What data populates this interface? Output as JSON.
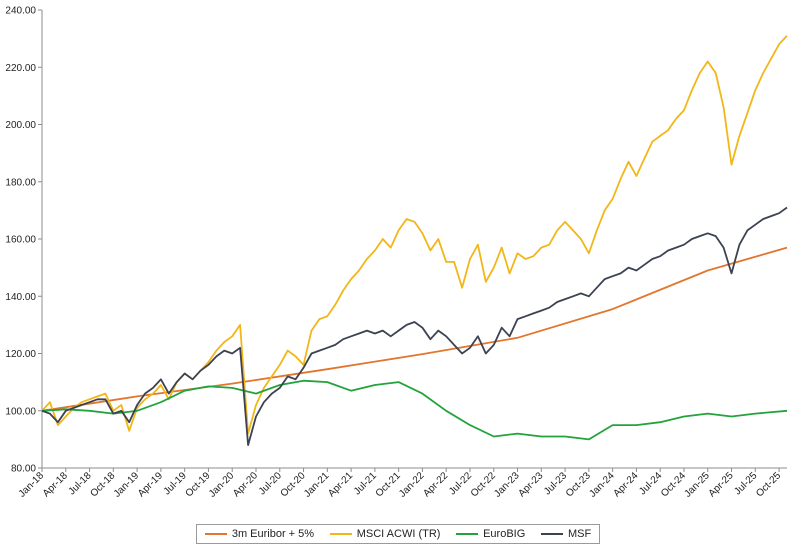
{
  "chart_data": {
    "type": "line",
    "title": "",
    "xlabel": "",
    "ylabel": "",
    "ylim": [
      80,
      240
    ],
    "yticks": [
      "80.00",
      "100.00",
      "120.00",
      "140.00",
      "160.00",
      "180.00",
      "200.00",
      "220.00",
      "240.00"
    ],
    "xticks": [
      "Jan-18",
      "Apr-18",
      "Jul-18",
      "Oct-18",
      "Jan-19",
      "Apr-19",
      "Jul-19",
      "Oct-19",
      "Jan-20",
      "Apr-20",
      "Jul-20",
      "Oct-20",
      "Jan-21",
      "Apr-21",
      "Jul-21",
      "Oct-21",
      "Jan-22",
      "Apr-22",
      "Jul-22",
      "Oct-22",
      "Jan-23",
      "Apr-23",
      "Jul-23",
      "Oct-23",
      "Jan-24",
      "Apr-24",
      "Jul-24",
      "Oct-24",
      "Jan-25",
      "Apr-25",
      "Jul-25",
      "Oct-25"
    ],
    "grid": false,
    "legend": "bottom",
    "x_unit": "month",
    "series": [
      {
        "name": "3m Euribor + 5%",
        "color": "#e2762d",
        "points": [
          [
            "Jan-18",
            100
          ],
          [
            "Jan-19",
            105
          ],
          [
            "Jan-20",
            109.5
          ],
          [
            "Jan-21",
            114.5
          ],
          [
            "Jan-22",
            119.8
          ],
          [
            "Jan-23",
            125.5
          ],
          [
            "Jan-24",
            135.5
          ],
          [
            "Jan-25",
            149
          ],
          [
            "Nov-25",
            157
          ]
        ]
      },
      {
        "name": "MSCI ACWI (TR)",
        "color": "#f2b619",
        "points": [
          [
            "Jan-18",
            100
          ],
          [
            "Feb-18",
            103
          ],
          [
            "Mar-18",
            95
          ],
          [
            "Apr-18",
            98
          ],
          [
            "May-18",
            101
          ],
          [
            "Jun-18",
            103
          ],
          [
            "Jul-18",
            104
          ],
          [
            "Aug-18",
            105
          ],
          [
            "Sep-18",
            106
          ],
          [
            "Oct-18",
            100
          ],
          [
            "Nov-18",
            102
          ],
          [
            "Dec-18",
            93
          ],
          [
            "Jan-19",
            101
          ],
          [
            "Feb-19",
            104
          ],
          [
            "Mar-19",
            106
          ],
          [
            "Apr-19",
            109
          ],
          [
            "May-19",
            104
          ],
          [
            "Jun-19",
            110
          ],
          [
            "Jul-19",
            113
          ],
          [
            "Aug-19",
            111
          ],
          [
            "Sep-19",
            114
          ],
          [
            "Oct-19",
            117
          ],
          [
            "Nov-19",
            121
          ],
          [
            "Dec-19",
            124
          ],
          [
            "Jan-20",
            126
          ],
          [
            "Feb-20",
            130
          ],
          [
            "Mar-20",
            92
          ],
          [
            "Apr-20",
            102
          ],
          [
            "May-20",
            108
          ],
          [
            "Jun-20",
            112
          ],
          [
            "Jul-20",
            116
          ],
          [
            "Aug-20",
            121
          ],
          [
            "Sep-20",
            119
          ],
          [
            "Oct-20",
            116
          ],
          [
            "Nov-20",
            128
          ],
          [
            "Dec-20",
            132
          ],
          [
            "Jan-21",
            133
          ],
          [
            "Feb-21",
            137
          ],
          [
            "Mar-21",
            142
          ],
          [
            "Apr-21",
            146
          ],
          [
            "May-21",
            149
          ],
          [
            "Jun-21",
            153
          ],
          [
            "Jul-21",
            156
          ],
          [
            "Aug-21",
            160
          ],
          [
            "Sep-21",
            157
          ],
          [
            "Oct-21",
            163
          ],
          [
            "Nov-21",
            167
          ],
          [
            "Dec-21",
            166
          ],
          [
            "Jan-22",
            162
          ],
          [
            "Feb-22",
            156
          ],
          [
            "Mar-22",
            160
          ],
          [
            "Apr-22",
            152
          ],
          [
            "May-22",
            152
          ],
          [
            "Jun-22",
            143
          ],
          [
            "Jul-22",
            153
          ],
          [
            "Aug-22",
            158
          ],
          [
            "Sep-22",
            145
          ],
          [
            "Oct-22",
            150
          ],
          [
            "Nov-22",
            157
          ],
          [
            "Dec-22",
            148
          ],
          [
            "Jan-23",
            155
          ],
          [
            "Feb-23",
            153
          ],
          [
            "Mar-23",
            154
          ],
          [
            "Apr-23",
            157
          ],
          [
            "May-23",
            158
          ],
          [
            "Jun-23",
            163
          ],
          [
            "Jul-23",
            166
          ],
          [
            "Aug-23",
            163
          ],
          [
            "Sep-23",
            160
          ],
          [
            "Oct-23",
            155
          ],
          [
            "Nov-23",
            163
          ],
          [
            "Dec-23",
            170
          ],
          [
            "Jan-24",
            174
          ],
          [
            "Feb-24",
            181
          ],
          [
            "Mar-24",
            187
          ],
          [
            "Apr-24",
            182
          ],
          [
            "May-24",
            188
          ],
          [
            "Jun-24",
            194
          ],
          [
            "Jul-24",
            196
          ],
          [
            "Aug-24",
            198
          ],
          [
            "Sep-24",
            202
          ],
          [
            "Oct-24",
            205
          ],
          [
            "Nov-24",
            212
          ],
          [
            "Dec-24",
            218
          ],
          [
            "Jan-25",
            222
          ],
          [
            "Feb-25",
            218
          ],
          [
            "Mar-25",
            206
          ],
          [
            "Apr-25",
            186
          ],
          [
            "May-25",
            196
          ],
          [
            "Jun-25",
            204
          ],
          [
            "Jul-25",
            212
          ],
          [
            "Aug-25",
            218
          ],
          [
            "Sep-25",
            223
          ],
          [
            "Oct-25",
            228
          ],
          [
            "Nov-25",
            231
          ]
        ]
      },
      {
        "name": "EuroBIG",
        "color": "#22a33c",
        "points": [
          [
            "Jan-18",
            100
          ],
          [
            "Apr-18",
            100.5
          ],
          [
            "Jul-18",
            100
          ],
          [
            "Oct-18",
            99
          ],
          [
            "Jan-19",
            100
          ],
          [
            "Apr-19",
            103
          ],
          [
            "Jul-19",
            107
          ],
          [
            "Oct-19",
            108.5
          ],
          [
            "Jan-20",
            108
          ],
          [
            "Apr-20",
            106
          ],
          [
            "Jul-20",
            109
          ],
          [
            "Oct-20",
            110.5
          ],
          [
            "Jan-21",
            110
          ],
          [
            "Apr-21",
            107
          ],
          [
            "Jul-21",
            109
          ],
          [
            "Oct-21",
            110
          ],
          [
            "Jan-22",
            106
          ],
          [
            "Apr-22",
            100
          ],
          [
            "Jul-22",
            95
          ],
          [
            "Oct-22",
            91
          ],
          [
            "Jan-23",
            92
          ],
          [
            "Apr-23",
            91
          ],
          [
            "Jul-23",
            91
          ],
          [
            "Oct-23",
            90
          ],
          [
            "Jan-24",
            95
          ],
          [
            "Apr-24",
            95
          ],
          [
            "Jul-24",
            96
          ],
          [
            "Oct-24",
            98
          ],
          [
            "Jan-25",
            99
          ],
          [
            "Apr-25",
            98
          ],
          [
            "Jul-25",
            99
          ],
          [
            "Nov-25",
            100
          ]
        ]
      },
      {
        "name": "MSF",
        "color": "#3c4252",
        "points": [
          [
            "Jan-18",
            100
          ],
          [
            "Feb-18",
            99
          ],
          [
            "Mar-18",
            96
          ],
          [
            "Apr-18",
            100
          ],
          [
            "May-18",
            101
          ],
          [
            "Jun-18",
            102
          ],
          [
            "Jul-18",
            103
          ],
          [
            "Aug-18",
            104
          ],
          [
            "Sep-18",
            104
          ],
          [
            "Oct-18",
            99
          ],
          [
            "Nov-18",
            100
          ],
          [
            "Dec-18",
            96
          ],
          [
            "Jan-19",
            102
          ],
          [
            "Feb-19",
            106
          ],
          [
            "Mar-19",
            108
          ],
          [
            "Apr-19",
            111
          ],
          [
            "May-19",
            106
          ],
          [
            "Jun-19",
            110
          ],
          [
            "Jul-19",
            113
          ],
          [
            "Aug-19",
            111
          ],
          [
            "Sep-19",
            114
          ],
          [
            "Oct-19",
            116
          ],
          [
            "Nov-19",
            119
          ],
          [
            "Dec-19",
            121
          ],
          [
            "Jan-20",
            120
          ],
          [
            "Feb-20",
            122
          ],
          [
            "Mar-20",
            88
          ],
          [
            "Apr-20",
            98
          ],
          [
            "May-20",
            103
          ],
          [
            "Jun-20",
            106
          ],
          [
            "Jul-20",
            108
          ],
          [
            "Aug-20",
            112
          ],
          [
            "Sep-20",
            111
          ],
          [
            "Oct-20",
            115
          ],
          [
            "Nov-20",
            120
          ],
          [
            "Dec-20",
            121
          ],
          [
            "Jan-21",
            122
          ],
          [
            "Feb-21",
            123
          ],
          [
            "Mar-21",
            125
          ],
          [
            "Apr-21",
            126
          ],
          [
            "May-21",
            127
          ],
          [
            "Jun-21",
            128
          ],
          [
            "Jul-21",
            127
          ],
          [
            "Aug-21",
            128
          ],
          [
            "Sep-21",
            126
          ],
          [
            "Oct-21",
            128
          ],
          [
            "Nov-21",
            130
          ],
          [
            "Dec-21",
            131
          ],
          [
            "Jan-22",
            129
          ],
          [
            "Feb-22",
            125
          ],
          [
            "Mar-22",
            128
          ],
          [
            "Apr-22",
            126
          ],
          [
            "May-22",
            123
          ],
          [
            "Jun-22",
            120
          ],
          [
            "Jul-22",
            122
          ],
          [
            "Aug-22",
            126
          ],
          [
            "Sep-22",
            120
          ],
          [
            "Oct-22",
            123
          ],
          [
            "Nov-22",
            129
          ],
          [
            "Dec-22",
            126
          ],
          [
            "Jan-23",
            132
          ],
          [
            "Feb-23",
            133
          ],
          [
            "Mar-23",
            134
          ],
          [
            "Apr-23",
            135
          ],
          [
            "May-23",
            136
          ],
          [
            "Jun-23",
            138
          ],
          [
            "Jul-23",
            139
          ],
          [
            "Aug-23",
            140
          ],
          [
            "Sep-23",
            141
          ],
          [
            "Oct-23",
            140
          ],
          [
            "Nov-23",
            143
          ],
          [
            "Dec-23",
            146
          ],
          [
            "Jan-24",
            147
          ],
          [
            "Feb-24",
            148
          ],
          [
            "Mar-24",
            150
          ],
          [
            "Apr-24",
            149
          ],
          [
            "May-24",
            151
          ],
          [
            "Jun-24",
            153
          ],
          [
            "Jul-24",
            154
          ],
          [
            "Aug-24",
            156
          ],
          [
            "Sep-24",
            157
          ],
          [
            "Oct-24",
            158
          ],
          [
            "Nov-24",
            160
          ],
          [
            "Dec-24",
            161
          ],
          [
            "Jan-25",
            162
          ],
          [
            "Feb-25",
            161
          ],
          [
            "Mar-25",
            157
          ],
          [
            "Apr-25",
            148
          ],
          [
            "May-25",
            158
          ],
          [
            "Jun-25",
            163
          ],
          [
            "Jul-25",
            165
          ],
          [
            "Aug-25",
            167
          ],
          [
            "Sep-25",
            168
          ],
          [
            "Oct-25",
            169
          ],
          [
            "Nov-25",
            171
          ]
        ]
      }
    ]
  }
}
